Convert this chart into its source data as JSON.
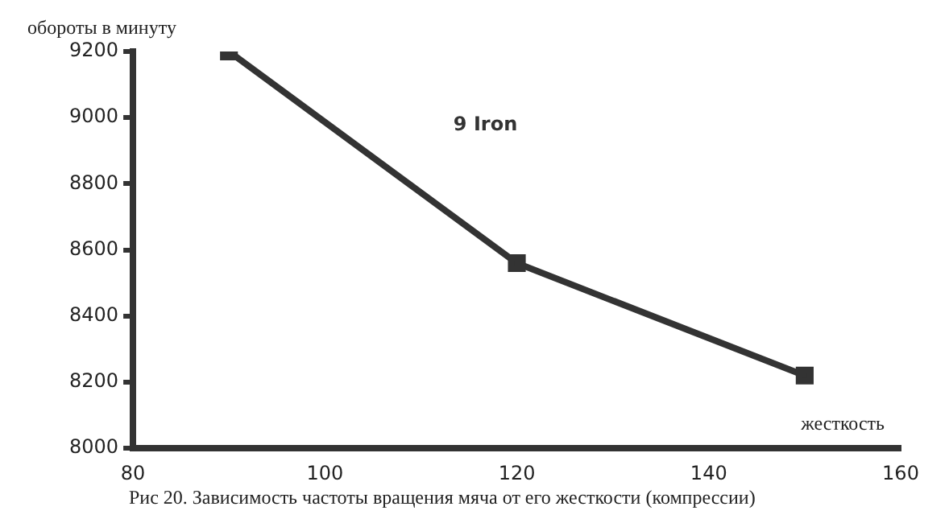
{
  "chart_data": {
    "type": "line",
    "xlabel": "жесткость",
    "ylabel": "обороты в минуту",
    "x": [
      90,
      120,
      150
    ],
    "series": [
      {
        "name": "9 Iron",
        "color": "#333333",
        "values": [
          9200,
          8560,
          8220
        ]
      }
    ],
    "xlim": [
      80,
      160
    ],
    "xticks": [
      80,
      100,
      120,
      140,
      160
    ],
    "ylim": [
      8000,
      9200
    ],
    "yticks": [
      8000,
      8200,
      8400,
      8600,
      8800,
      9000,
      9200
    ],
    "grid": false,
    "legend": false,
    "marker": "square",
    "line_style": "solid",
    "annotations": [
      "Рис 20. Зависимость частоты вращения мяча от его жесткости (компрессии)"
    ]
  }
}
